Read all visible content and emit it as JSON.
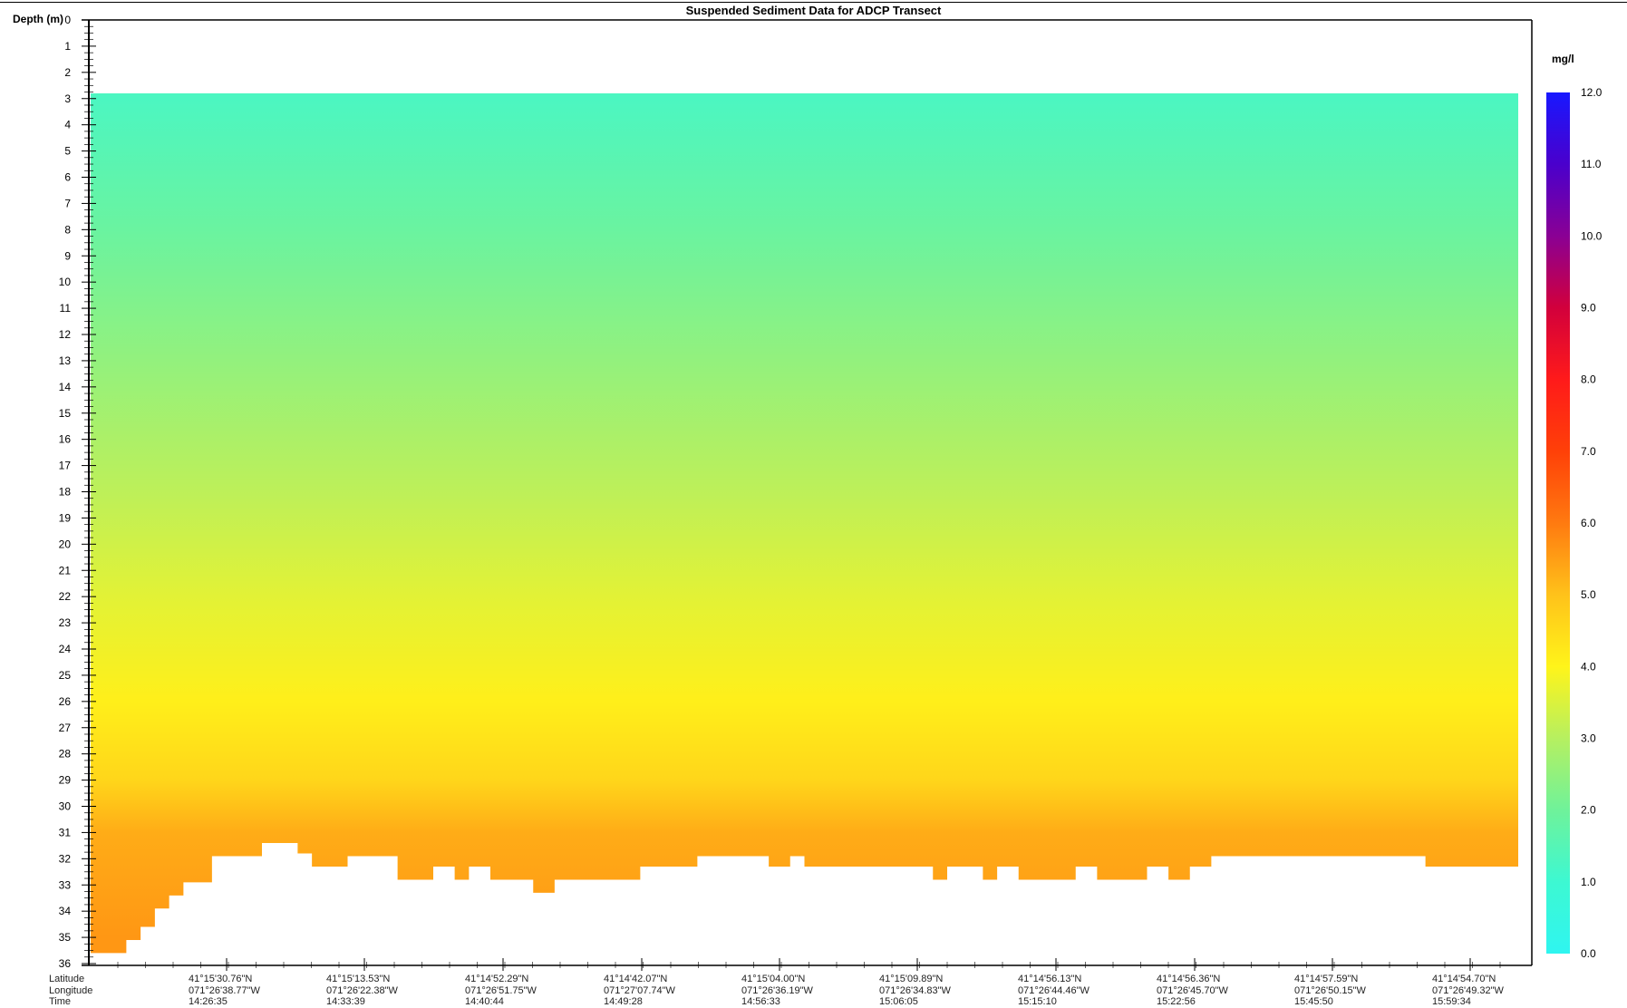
{
  "chart_data": {
    "type": "heatmap",
    "title": "Suspended Sediment Data for ADCP Transect",
    "ylabel": "Depth (m)",
    "ylim": [
      0,
      36
    ],
    "yticks": [
      0,
      1,
      2,
      3,
      4,
      5,
      6,
      7,
      8,
      9,
      10,
      11,
      12,
      13,
      14,
      15,
      16,
      17,
      18,
      19,
      20,
      21,
      22,
      23,
      24,
      25,
      26,
      27,
      28,
      29,
      30,
      31,
      32,
      33,
      34,
      35,
      36
    ],
    "x_row_labels": [
      "Latitude",
      "Longitude",
      "Time"
    ],
    "x_stations": [
      {
        "lat": "41°15'30.76\"N",
        "lon": "071°26'38.77\"W",
        "time": "14:26:35"
      },
      {
        "lat": "41°15'13.53\"N",
        "lon": "071°26'22.38\"W",
        "time": "14:33:39"
      },
      {
        "lat": "41°14'52.29\"N",
        "lon": "071°26'51.75\"W",
        "time": "14:40:44"
      },
      {
        "lat": "41°14'42.07\"N",
        "lon": "071°27'07.74\"W",
        "time": "14:49:28"
      },
      {
        "lat": "41°15'04.00\"N",
        "lon": "071°26'36.19\"W",
        "time": "14:56:33"
      },
      {
        "lat": "41°15'09.89\"N",
        "lon": "071°26'34.83\"W",
        "time": "15:06:05"
      },
      {
        "lat": "41°14'56.13\"N",
        "lon": "071°26'44.46\"W",
        "time": "15:15:10"
      },
      {
        "lat": "41°14'56.36\"N",
        "lon": "071°26'45.70\"W",
        "time": "15:22:56"
      },
      {
        "lat": "41°14'57.59\"N",
        "lon": "071°26'50.15\"W",
        "time": "15:45:50"
      },
      {
        "lat": "41°14'54.70\"N",
        "lon": "071°26'49.32\"W",
        "time": "15:59:34"
      }
    ],
    "data_top_depth_m": 2.8,
    "concentration_by_depth": [
      {
        "depth": 3,
        "value": 1.3
      },
      {
        "depth": 8,
        "value": 1.9
      },
      {
        "depth": 13,
        "value": 2.5
      },
      {
        "depth": 18,
        "value": 3.1
      },
      {
        "depth": 22,
        "value": 3.6
      },
      {
        "depth": 26,
        "value": 4.1
      },
      {
        "depth": 29,
        "value": 4.6
      },
      {
        "depth": 31,
        "value": 5.3
      },
      {
        "depth": 35,
        "value": 5.6
      }
    ],
    "bottom_profile": [
      {
        "x": 0.0,
        "depth": 36.0
      },
      {
        "x": 0.025,
        "depth": 35.6
      },
      {
        "x": 0.035,
        "depth": 35.1
      },
      {
        "x": 0.045,
        "depth": 34.6
      },
      {
        "x": 0.055,
        "depth": 33.9
      },
      {
        "x": 0.065,
        "depth": 33.4
      },
      {
        "x": 0.085,
        "depth": 32.9
      },
      {
        "x": 0.12,
        "depth": 31.9
      },
      {
        "x": 0.145,
        "depth": 31.4
      },
      {
        "x": 0.155,
        "depth": 31.8
      },
      {
        "x": 0.18,
        "depth": 32.3
      },
      {
        "x": 0.215,
        "depth": 31.9
      },
      {
        "x": 0.24,
        "depth": 32.8
      },
      {
        "x": 0.255,
        "depth": 32.3
      },
      {
        "x": 0.265,
        "depth": 32.8
      },
      {
        "x": 0.28,
        "depth": 32.3
      },
      {
        "x": 0.31,
        "depth": 32.8
      },
      {
        "x": 0.325,
        "depth": 33.3
      },
      {
        "x": 0.385,
        "depth": 32.8
      },
      {
        "x": 0.425,
        "depth": 32.3
      },
      {
        "x": 0.475,
        "depth": 31.9
      },
      {
        "x": 0.49,
        "depth": 32.3
      },
      {
        "x": 0.5,
        "depth": 31.9
      },
      {
        "x": 0.59,
        "depth": 32.3
      },
      {
        "x": 0.6,
        "depth": 32.8
      },
      {
        "x": 0.625,
        "depth": 32.3
      },
      {
        "x": 0.635,
        "depth": 32.8
      },
      {
        "x": 0.65,
        "depth": 32.3
      },
      {
        "x": 0.69,
        "depth": 32.8
      },
      {
        "x": 0.705,
        "depth": 32.3
      },
      {
        "x": 0.74,
        "depth": 32.8
      },
      {
        "x": 0.755,
        "depth": 32.3
      },
      {
        "x": 0.77,
        "depth": 32.8
      },
      {
        "x": 0.785,
        "depth": 32.3
      },
      {
        "x": 0.935,
        "depth": 31.9
      },
      {
        "x": 0.96,
        "depth": 32.3
      },
      {
        "x": 1.0,
        "depth": 32.3
      }
    ],
    "colorbar": {
      "unit": "mg/l",
      "range": [
        0.0,
        12.0
      ],
      "ticks": [
        "0.0",
        "1.0",
        "2.0",
        "3.0",
        "4.0",
        "5.0",
        "6.0",
        "7.0",
        "8.0",
        "9.0",
        "10.0",
        "11.0",
        "12.0"
      ],
      "colors": [
        {
          "value": 0.0,
          "color": "#2ff5f0"
        },
        {
          "value": 1.0,
          "color": "#3df8d2"
        },
        {
          "value": 2.0,
          "color": "#6ff29a"
        },
        {
          "value": 3.0,
          "color": "#b6f060"
        },
        {
          "value": 4.0,
          "color": "#fff41a"
        },
        {
          "value": 5.0,
          "color": "#ffc21a"
        },
        {
          "value": 6.0,
          "color": "#ff7a10"
        },
        {
          "value": 7.0,
          "color": "#ff4008"
        },
        {
          "value": 8.0,
          "color": "#ff1a1a"
        },
        {
          "value": 9.0,
          "color": "#d2003c"
        },
        {
          "value": 10.0,
          "color": "#8a0094"
        },
        {
          "value": 11.0,
          "color": "#4a00cc"
        },
        {
          "value": 12.0,
          "color": "#1818ff"
        }
      ]
    }
  }
}
